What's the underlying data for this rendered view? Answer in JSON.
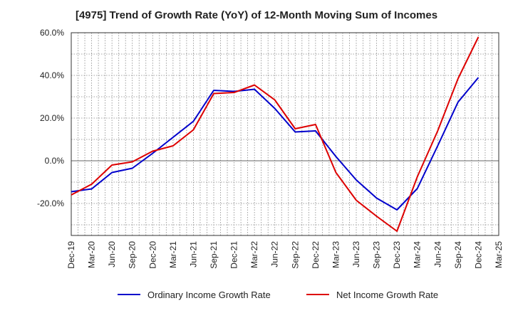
{
  "chart_data": {
    "type": "line",
    "title": "[4975]  Trend of Growth Rate (YoY) of 12-Month Moving Sum of Incomes",
    "xlabel": "",
    "ylabel": "",
    "ylim": [
      -35,
      60
    ],
    "y_ticks": [
      "60.0%",
      "40.0%",
      "20.0%",
      "0.0%",
      "-20.0%"
    ],
    "y_tick_values": [
      60,
      40,
      20,
      0,
      -20
    ],
    "x_ticks": [
      "Dec-19",
      "Mar-20",
      "Jun-20",
      "Sep-20",
      "Dec-20",
      "Mar-21",
      "Jun-21",
      "Sep-21",
      "Dec-21",
      "Mar-22",
      "Jun-22",
      "Sep-22",
      "Dec-22",
      "Mar-23",
      "Jun-23",
      "Sep-23",
      "Dec-23",
      "Mar-24",
      "Jun-24",
      "Sep-24",
      "Dec-24",
      "Mar-25"
    ],
    "grid": true,
    "legend_position": "bottom",
    "series": [
      {
        "name": "Ordinary Income Growth Rate",
        "color": "#0000cc",
        "values": [
          -14.5,
          -13.2,
          -5.5,
          -3.5,
          3.5,
          11.0,
          18.5,
          33.0,
          32.5,
          33.5,
          24.5,
          13.5,
          14.0,
          2.0,
          -9.0,
          -17.5,
          -23.0,
          -13.0,
          7.0,
          27.5,
          39.0
        ]
      },
      {
        "name": "Net Income Growth Rate",
        "color": "#dd0000",
        "values": [
          -16.0,
          -11.0,
          -2.0,
          -0.5,
          4.5,
          7.0,
          14.5,
          31.5,
          32.0,
          35.5,
          28.5,
          15.0,
          17.0,
          -5.5,
          -18.5,
          -26.0,
          -33.0,
          -7.5,
          14.0,
          38.5,
          58.0
        ]
      }
    ]
  }
}
